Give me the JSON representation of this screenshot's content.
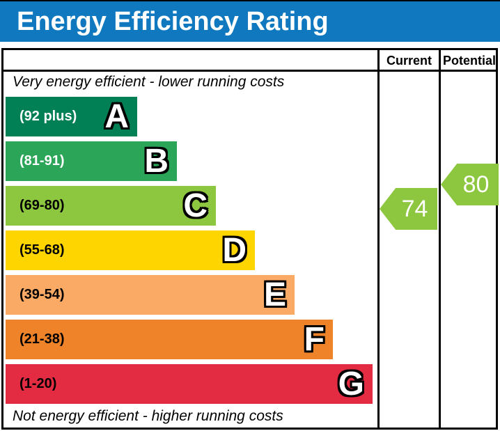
{
  "title_bar": {
    "title": "Energy Efficiency Rating"
  },
  "table_header": {
    "current": "Current",
    "potential": "Potential"
  },
  "notes": {
    "top": "Very energy efficient - lower running costs",
    "bottom": "Not energy efficient - higher running costs"
  },
  "colors": {
    "title_bar_bg": "#0f78be",
    "title_text": "#ffffff",
    "border": "#000000",
    "arrow_green": "#8dc63f",
    "arrow_text": "#ffffff"
  },
  "chart_data": {
    "type": "bar",
    "title": "Energy Efficiency Rating",
    "orientation": "horizontal",
    "annotations": [
      "Very energy efficient - lower running costs",
      "Not energy efficient - higher running costs"
    ],
    "bands": [
      {
        "letter": "A",
        "range_label": "(92 plus)",
        "min": 92,
        "max": 100,
        "color": "#008054",
        "label_color": "#ffffff"
      },
      {
        "letter": "B",
        "range_label": "(81-91)",
        "min": 81,
        "max": 91,
        "color": "#2ba558",
        "label_color": "#ffffff"
      },
      {
        "letter": "C",
        "range_label": "(69-80)",
        "min": 69,
        "max": 80,
        "color": "#8dc63f",
        "label_color": "#000000"
      },
      {
        "letter": "D",
        "range_label": "(55-68)",
        "min": 55,
        "max": 68,
        "color": "#ffd500",
        "label_color": "#000000"
      },
      {
        "letter": "E",
        "range_label": "(39-54)",
        "min": 39,
        "max": 54,
        "color": "#fbaa65",
        "label_color": "#000000"
      },
      {
        "letter": "F",
        "range_label": "(21-38)",
        "min": 21,
        "max": 38,
        "color": "#ee8329",
        "label_color": "#000000"
      },
      {
        "letter": "G",
        "range_label": "(1-20)",
        "min": 1,
        "max": 20,
        "color": "#e32b42",
        "label_color": "#000000"
      }
    ],
    "current": 74,
    "potential": 80
  }
}
